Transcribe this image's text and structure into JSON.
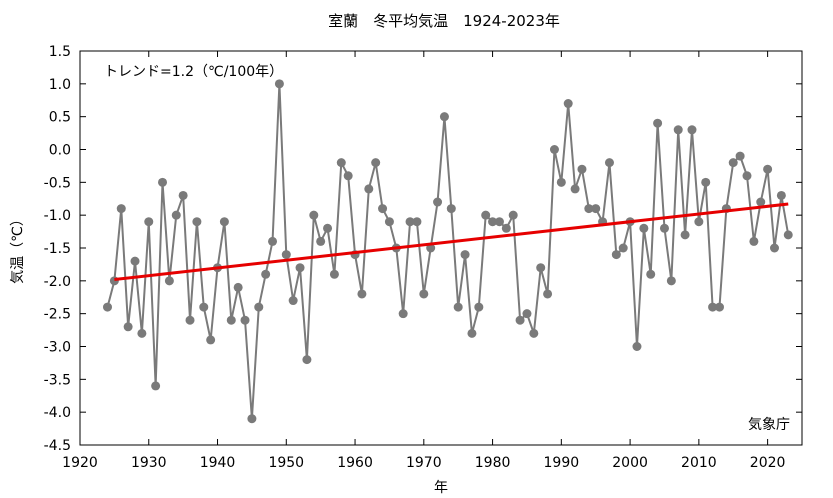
{
  "chart_data": {
    "type": "line",
    "title": "室蘭　冬平均気温　1924-2023年",
    "xlabel": "年",
    "ylabel": "気温（℃）",
    "annotation": "トレンド=1.2（℃/100年）",
    "source": "気象庁",
    "xlim": [
      1920,
      2025
    ],
    "ylim": [
      -4.5,
      1.5
    ],
    "x_ticks": [
      1920,
      1930,
      1940,
      1950,
      1960,
      1970,
      1980,
      1990,
      2000,
      2010,
      2020
    ],
    "y_ticks": [
      1.5,
      1.0,
      0.5,
      0.0,
      -0.5,
      -1.0,
      -1.5,
      -2.0,
      -2.5,
      -3.0,
      -3.5,
      -4.0,
      -4.5
    ],
    "y_tick_labels": [
      "1.5",
      "1.0",
      "0.5",
      "0.0",
      "-0.5",
      "-1.0",
      "-1.5",
      "-2.0",
      "-2.5",
      "-3.0",
      "-3.5",
      "-4.0",
      "-4.5"
    ],
    "grid": false,
    "x": [
      1924,
      1925,
      1926,
      1927,
      1928,
      1929,
      1930,
      1931,
      1932,
      1933,
      1934,
      1935,
      1936,
      1937,
      1938,
      1939,
      1940,
      1941,
      1942,
      1943,
      1944,
      1945,
      1946,
      1947,
      1948,
      1949,
      1950,
      1951,
      1952,
      1953,
      1954,
      1955,
      1956,
      1957,
      1958,
      1959,
      1960,
      1961,
      1962,
      1963,
      1964,
      1965,
      1966,
      1967,
      1968,
      1969,
      1970,
      1971,
      1972,
      1973,
      1974,
      1975,
      1976,
      1977,
      1978,
      1979,
      1980,
      1981,
      1982,
      1983,
      1984,
      1985,
      1986,
      1987,
      1988,
      1989,
      1990,
      1991,
      1992,
      1993,
      1994,
      1995,
      1996,
      1997,
      1998,
      1999,
      2000,
      2001,
      2002,
      2003,
      2004,
      2005,
      2006,
      2007,
      2008,
      2009,
      2010,
      2011,
      2012,
      2013,
      2014,
      2015,
      2016,
      2017,
      2018,
      2019,
      2020,
      2021,
      2022,
      2023
    ],
    "series": [
      {
        "values": [
          -2.4,
          -2.0,
          -0.9,
          -2.7,
          -1.7,
          -2.8,
          -1.1,
          -3.6,
          -0.5,
          -2.0,
          -1.0,
          -0.7,
          -2.6,
          -1.1,
          -2.4,
          -2.9,
          -1.8,
          -1.1,
          -2.6,
          -2.1,
          -2.6,
          -4.1,
          -2.4,
          -1.9,
          -1.4,
          1.0,
          -1.6,
          -2.3,
          -1.8,
          -3.2,
          -1.0,
          -1.4,
          -1.2,
          -1.9,
          -0.2,
          -0.4,
          -1.6,
          -2.2,
          -0.6,
          -0.2,
          -0.9,
          -1.1,
          -1.5,
          -2.5,
          -1.1,
          -1.1,
          -2.2,
          -1.5,
          -0.8,
          0.5,
          -0.9,
          -2.4,
          -1.6,
          -2.8,
          -2.4,
          -1.0,
          -1.1,
          -1.1,
          -1.2,
          -1.0,
          -2.6,
          -2.5,
          -2.8,
          -1.8,
          -2.2,
          0.0,
          -0.5,
          0.7,
          -0.6,
          -0.3,
          -0.9,
          -0.9,
          -1.1,
          -0.2,
          -1.6,
          -1.5,
          -1.1,
          -3.0,
          -1.2,
          -1.9,
          0.4,
          -1.2,
          -2.0,
          0.3,
          -1.3,
          0.3,
          -1.1,
          -0.5,
          -2.4,
          -2.4,
          -0.9,
          -0.2,
          -0.1,
          -0.4,
          -1.4,
          -0.8,
          -0.3,
          -1.5,
          -0.7,
          -1.3
        ],
        "color": "#7a7a7a"
      }
    ],
    "trend": {
      "slope_per_year": 0.012,
      "start": [
        1925,
        -1.98
      ],
      "end": [
        2023,
        -0.83
      ],
      "color": "#e60000"
    }
  }
}
